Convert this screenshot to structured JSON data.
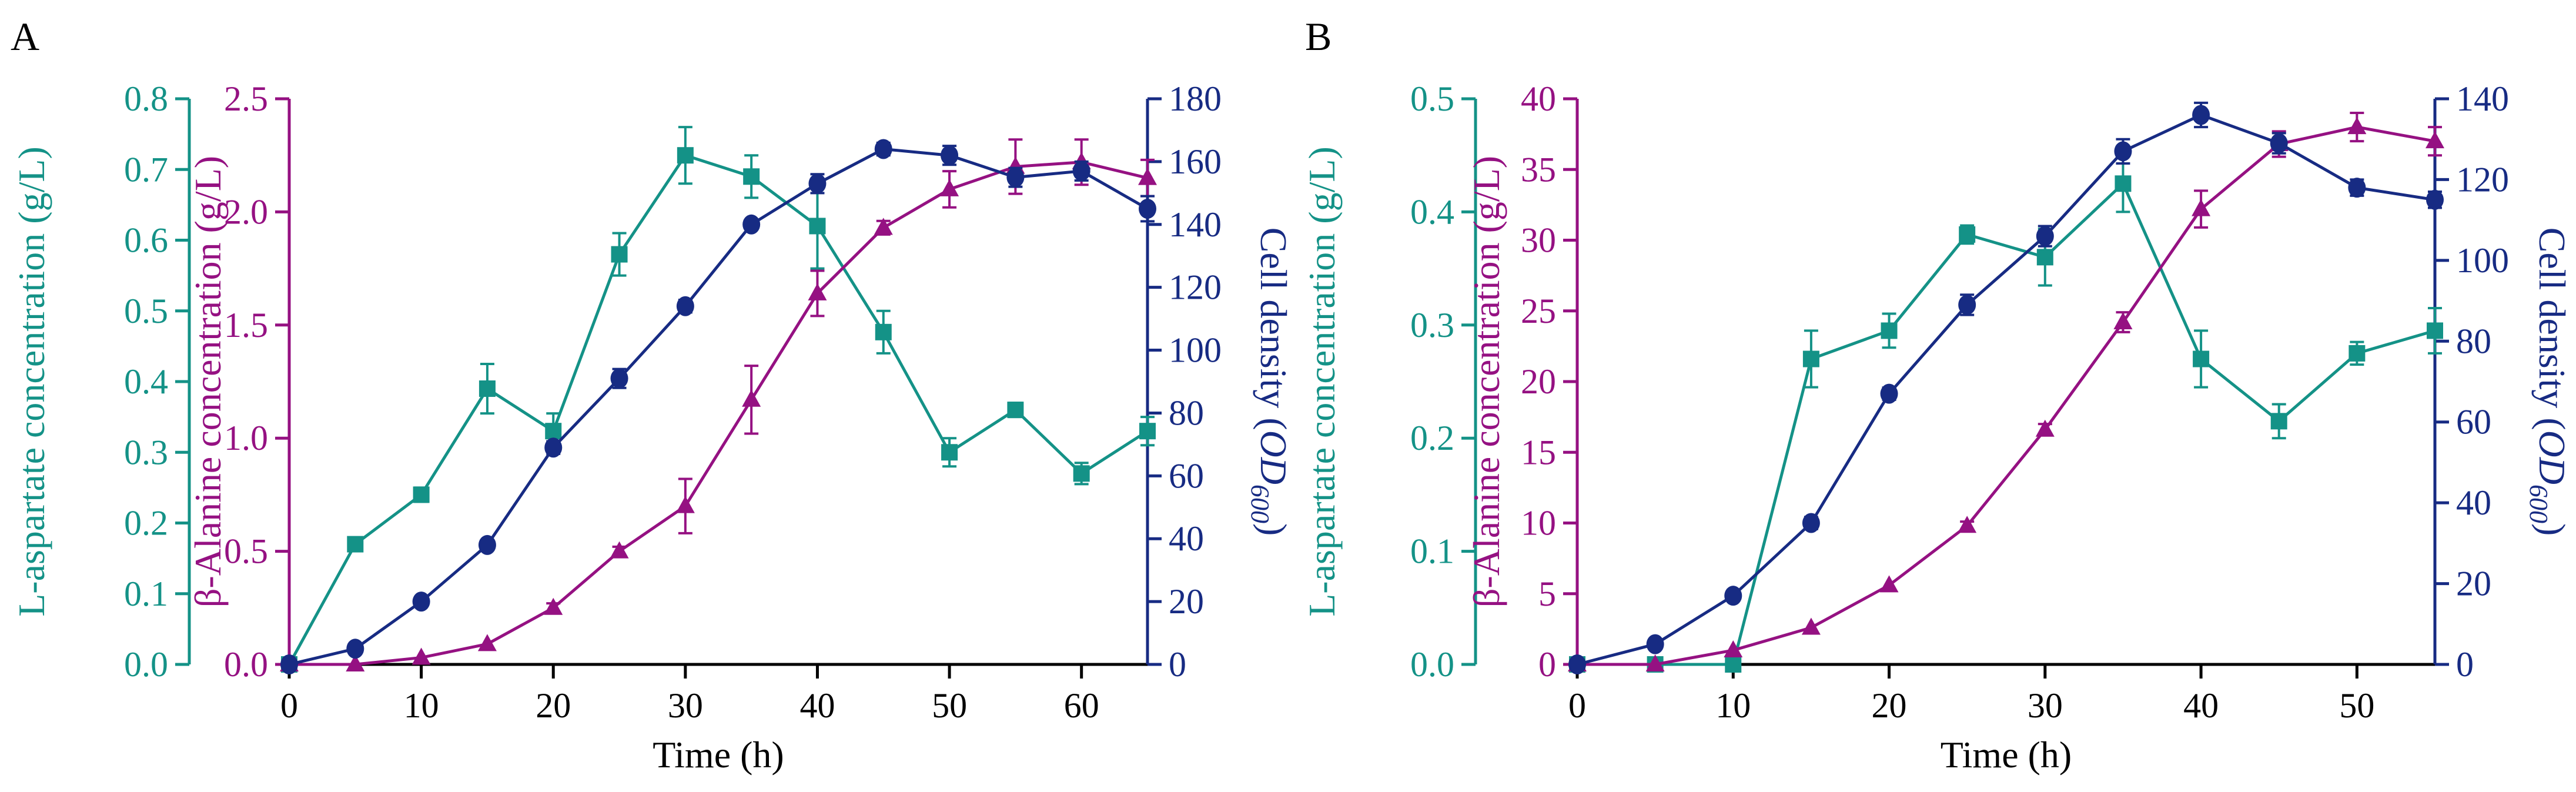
{
  "colors": {
    "teal": "#149287",
    "magenta": "#951182",
    "navy": "#172B83",
    "axis": "#000000"
  },
  "chart_data": [
    {
      "type": "line",
      "panel_label": "A",
      "xlabel": "Time (h)",
      "xlim": [
        0,
        65
      ],
      "xticks": [
        0,
        10,
        20,
        30,
        40,
        50,
        60
      ],
      "axes": {
        "left1": {
          "label": "L-aspartate concentration (g/L)",
          "ylim": [
            0,
            0.8
          ],
          "ticks": [
            "0.0",
            "0.1",
            "0.2",
            "0.3",
            "0.4",
            "0.5",
            "0.6",
            "0.7",
            "0.8"
          ]
        },
        "left2": {
          "label": "β-Alanine concentration (g/L)",
          "ylim": [
            0,
            2.5
          ],
          "ticks": [
            "0.0",
            "0.5",
            "1.0",
            "1.5",
            "2.0",
            "2.5"
          ]
        },
        "right": {
          "label": "Cell density (OD600)",
          "label_main": "Cell density (",
          "label_italic": "OD",
          "label_sub": "600",
          "label_end": ")",
          "ylim": [
            0,
            180
          ],
          "ticks": [
            "0",
            "20",
            "40",
            "60",
            "80",
            "100",
            "120",
            "140",
            "160",
            "180"
          ]
        }
      },
      "series": [
        {
          "name": "L-aspartate",
          "axis": "left1",
          "color": "teal",
          "marker": "square",
          "x": [
            0,
            5,
            10,
            15,
            20,
            25,
            30,
            35,
            40,
            45,
            50,
            55,
            60,
            65
          ],
          "y": [
            0,
            0.17,
            0.24,
            0.39,
            0.33,
            0.58,
            0.72,
            0.69,
            0.62,
            0.47,
            0.3,
            0.36,
            0.27,
            0.33
          ],
          "err": [
            0,
            0.005,
            0.01,
            0.035,
            0.025,
            0.03,
            0.04,
            0.03,
            0.06,
            0.03,
            0.02,
            0.01,
            0.015,
            0.02
          ]
        },
        {
          "name": "β-Alanine",
          "axis": "left2",
          "color": "magenta",
          "marker": "triangle",
          "x": [
            0,
            5,
            10,
            15,
            20,
            25,
            30,
            35,
            40,
            45,
            50,
            55,
            60,
            65
          ],
          "y": [
            0,
            0.0,
            0.03,
            0.09,
            0.25,
            0.5,
            0.7,
            1.17,
            1.64,
            1.93,
            2.1,
            2.2,
            2.22,
            2.15
          ],
          "err": [
            0,
            0,
            0,
            0,
            0.02,
            0.02,
            0.12,
            0.15,
            0.1,
            0.03,
            0.08,
            0.12,
            0.1,
            0.08
          ]
        },
        {
          "name": "Cell density",
          "axis": "right",
          "color": "navy",
          "marker": "circle",
          "x": [
            0,
            5,
            10,
            15,
            20,
            25,
            30,
            35,
            40,
            45,
            50,
            55,
            60,
            65
          ],
          "y": [
            0,
            5,
            20,
            38,
            69,
            91,
            114,
            140,
            153,
            164,
            162,
            155,
            157,
            145
          ],
          "err": [
            0,
            0,
            0,
            0,
            2,
            3,
            2,
            1,
            3,
            2,
            3,
            3,
            3,
            4
          ]
        }
      ]
    },
    {
      "type": "line",
      "panel_label": "B",
      "xlabel": "Time (h)",
      "xlim": [
        0,
        55
      ],
      "xticks": [
        0,
        10,
        20,
        30,
        40,
        50
      ],
      "axes": {
        "left1": {
          "label": "L-aspartate concentration (g/L)",
          "ylim": [
            0,
            0.5
          ],
          "ticks": [
            "0.0",
            "0.1",
            "0.2",
            "0.3",
            "0.4",
            "0.5"
          ]
        },
        "left2": {
          "label": "β-Alanine concentration (g/L)",
          "ylim": [
            0,
            40
          ],
          "ticks": [
            "0",
            "5",
            "10",
            "15",
            "20",
            "25",
            "30",
            "35",
            "40"
          ]
        },
        "right": {
          "label": "Cell density (OD600)",
          "label_main": "Cell density (",
          "label_italic": "OD",
          "label_sub": "600",
          "label_end": ")",
          "ylim": [
            0,
            140
          ],
          "ticks": [
            "0",
            "20",
            "40",
            "60",
            "80",
            "100",
            "120",
            "140"
          ]
        }
      },
      "series": [
        {
          "name": "L-aspartate",
          "axis": "left1",
          "color": "teal",
          "marker": "square",
          "x": [
            0,
            5,
            10,
            15,
            20,
            25,
            30,
            35,
            40,
            45,
            50,
            55
          ],
          "y": [
            0,
            0,
            0,
            0.27,
            0.295,
            0.38,
            0.36,
            0.425,
            0.27,
            0.215,
            0.275,
            0.295
          ],
          "err": [
            0,
            0,
            0,
            0.025,
            0.015,
            0.008,
            0.025,
            0.025,
            0.025,
            0.015,
            0.01,
            0.02
          ]
        },
        {
          "name": "β-Alanine",
          "axis": "left2",
          "color": "magenta",
          "marker": "triangle",
          "x": [
            0,
            5,
            10,
            15,
            20,
            25,
            30,
            35,
            40,
            45,
            50,
            55
          ],
          "y": [
            0,
            0,
            1,
            2.6,
            5.6,
            9.8,
            16.6,
            24.2,
            32.2,
            36.8,
            38,
            37
          ],
          "err": [
            0,
            0,
            0,
            0,
            0,
            0.3,
            0.4,
            0.7,
            1.3,
            0.9,
            1,
            1
          ]
        },
        {
          "name": "Cell density",
          "axis": "right",
          "color": "navy",
          "marker": "circle",
          "x": [
            0,
            5,
            10,
            15,
            20,
            25,
            30,
            35,
            40,
            45,
            50,
            55
          ],
          "y": [
            0,
            5,
            17,
            35,
            67,
            89,
            106,
            127,
            136,
            129,
            118,
            115
          ],
          "err": [
            0,
            0,
            0,
            1.5,
            1.5,
            2.5,
            2.5,
            3,
            3,
            2.5,
            2,
            2
          ]
        }
      ]
    }
  ]
}
